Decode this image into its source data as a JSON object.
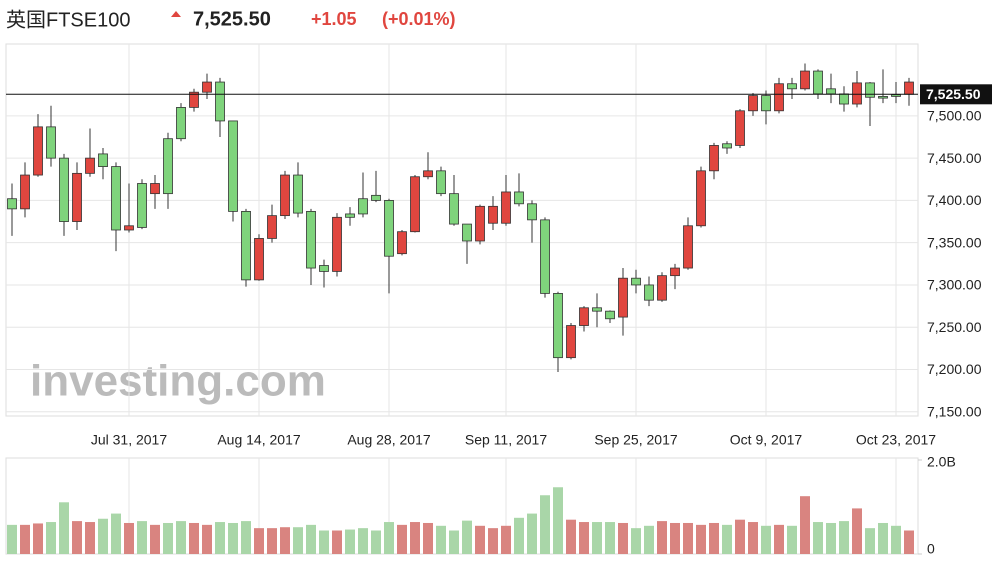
{
  "header": {
    "title": "英国FTSE100",
    "price": "7,525.50",
    "change": "+1.05",
    "change_pct": "(+0.01%)"
  },
  "watermark": "investing.com",
  "chart_data": [
    {
      "type": "candlestick",
      "categories": [
        null,
        null,
        null,
        null,
        null,
        null,
        null,
        null,
        null,
        "Jul 31, 2017",
        null,
        null,
        null,
        null,
        null,
        null,
        null,
        null,
        null,
        "Aug 14, 2017",
        null,
        null,
        null,
        null,
        null,
        null,
        null,
        null,
        null,
        "Aug 28, 2017",
        null,
        null,
        null,
        null,
        null,
        null,
        null,
        null,
        "Sep 11, 2017",
        null,
        null,
        null,
        null,
        null,
        null,
        null,
        null,
        null,
        "Sep 25, 2017",
        null,
        null,
        null,
        null,
        null,
        null,
        null,
        null,
        null,
        "Oct 9, 2017",
        null,
        null,
        null,
        null,
        null,
        null,
        null,
        null,
        null,
        "Oct 23, 2017",
        null
      ],
      "open": [
        7390,
        7430,
        7487,
        7450,
        7375,
        7432,
        7450,
        7440,
        7365,
        7370,
        7368,
        7420,
        7408,
        7473,
        7528,
        7540,
        7494,
        7387,
        7306,
        7355,
        7382,
        7430,
        7385,
        7320,
        7316,
        7380,
        7380,
        7384,
        7400,
        7334,
        7363,
        7428,
        7435,
        7408,
        7372,
        7352,
        7393,
        7393,
        7410,
        7396,
        7377,
        7290,
        7214,
        7252,
        7273,
        7269,
        7260,
        7308,
        7300,
        7282,
        7311,
        7320,
        7370,
        7435,
        7465,
        7462,
        7506,
        7524,
        7506,
        7538,
        7532,
        7553,
        7526,
        7526,
        7514,
        7539,
        7522,
        7521,
        7523,
        7540
      ],
      "high": [
        7420,
        7445,
        7502,
        7512,
        7455,
        7445,
        7485,
        7462,
        7445,
        7420,
        7425,
        7430,
        7480,
        7515,
        7532,
        7550,
        7545,
        7494,
        7390,
        7360,
        7395,
        7435,
        7445,
        7390,
        7330,
        7385,
        7392,
        7433,
        7435,
        7402,
        7365,
        7430,
        7457,
        7440,
        7430,
        7372,
        7395,
        7405,
        7430,
        7432,
        7400,
        7380,
        7292,
        7255,
        7275,
        7290,
        7270,
        7320,
        7318,
        7310,
        7315,
        7325,
        7380,
        7440,
        7468,
        7470,
        7508,
        7527,
        7530,
        7545,
        7545,
        7562,
        7555,
        7550,
        7535,
        7553,
        7540,
        7555,
        7540,
        7545
      ],
      "low": [
        7358,
        7380,
        7428,
        7440,
        7358,
        7365,
        7428,
        7425,
        7340,
        7362,
        7366,
        7390,
        7390,
        7470,
        7505,
        7520,
        7475,
        7375,
        7298,
        7305,
        7350,
        7378,
        7380,
        7300,
        7297,
        7310,
        7370,
        7380,
        7398,
        7290,
        7335,
        7362,
        7425,
        7405,
        7370,
        7325,
        7348,
        7365,
        7370,
        7393,
        7350,
        7285,
        7197,
        7212,
        7245,
        7250,
        7255,
        7240,
        7290,
        7275,
        7280,
        7295,
        7318,
        7368,
        7425,
        7455,
        7462,
        7500,
        7490,
        7503,
        7520,
        7530,
        7520,
        7515,
        7505,
        7510,
        7488,
        7515,
        7515,
        7512
      ],
      "close": [
        7402,
        7390,
        7430,
        7487,
        7450,
        7375,
        7432,
        7455,
        7440,
        7365,
        7420,
        7408,
        7473,
        7510,
        7510,
        7528,
        7540,
        7494,
        7387,
        7306,
        7355,
        7382,
        7430,
        7387,
        7323,
        7316,
        7384,
        7402,
        7406,
        7400,
        7337,
        7363,
        7428,
        7435,
        7408,
        7372,
        7352,
        7373,
        7373,
        7410,
        7396,
        7377,
        7290,
        7214,
        7252,
        7273,
        7269,
        7262,
        7308,
        7300,
        7282,
        7311,
        7320,
        7370,
        7435,
        7467,
        7465,
        7506,
        7524,
        7506,
        7538,
        7532,
        7553,
        7532,
        7526,
        7514,
        7539,
        7523,
        7525,
        7525.5
      ],
      "up_color": "#7fd47c",
      "down_color": "#e0463f",
      "last_price": {
        "value": 7525.5,
        "label": "7,525.50"
      },
      "ylim": [
        7145,
        7585
      ],
      "yticks": [
        {
          "value": 7150,
          "label": "7,150.00"
        },
        {
          "value": 7200,
          "label": "7,200.00"
        },
        {
          "value": 7250,
          "label": "7,250.00"
        },
        {
          "value": 7300,
          "label": "7,300.00"
        },
        {
          "value": 7350,
          "label": "7,350.00"
        },
        {
          "value": 7400,
          "label": "7,400.00"
        },
        {
          "value": 7450,
          "label": "7,450.00"
        },
        {
          "value": 7500,
          "label": "7,500.00"
        }
      ],
      "grid": true
    },
    {
      "type": "volume",
      "values": [
        0.62,
        0.62,
        0.65,
        0.68,
        1.1,
        0.7,
        0.68,
        0.75,
        0.86,
        0.66,
        0.7,
        0.62,
        0.66,
        0.7,
        0.66,
        0.62,
        0.68,
        0.66,
        0.7,
        0.55,
        0.55,
        0.57,
        0.57,
        0.62,
        0.5,
        0.5,
        0.52,
        0.55,
        0.5,
        0.68,
        0.62,
        0.68,
        0.66,
        0.6,
        0.5,
        0.71,
        0.6,
        0.55,
        0.6,
        0.77,
        0.86,
        1.25,
        1.42,
        0.73,
        0.68,
        0.68,
        0.68,
        0.66,
        0.55,
        0.6,
        0.7,
        0.66,
        0.66,
        0.62,
        0.66,
        0.62,
        0.73,
        0.68,
        0.6,
        0.62,
        0.6,
        1.23,
        0.68,
        0.66,
        0.7,
        0.97,
        0.55,
        0.66,
        0.6,
        0.5
      ],
      "up_color": "#a9d6a8",
      "down_color": "#d98480",
      "ylim": [
        0,
        2
      ],
      "yticks": [
        0,
        {
          "value": 2,
          "label": "2.0B"
        }
      ]
    }
  ]
}
